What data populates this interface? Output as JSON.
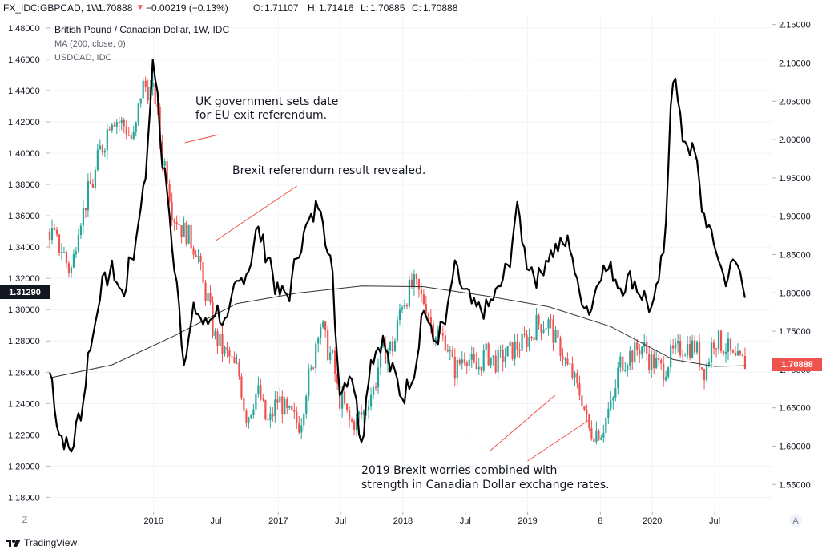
{
  "header": {
    "symbol": "FX_IDC:GBPCAD, 1W",
    "last": "1.70888",
    "change": "−0.00219 (−0.13%)",
    "o_label": "O:",
    "o_value": "1.71107",
    "h_label": "H:",
    "h_value": "1.71416",
    "l_label": "L:",
    "l_value": "1.70885",
    "c_label": "C:",
    "c_value": "1.70888"
  },
  "legend": {
    "line1": "British Pound / Canadian Dollar, 1W, IDC",
    "line2": "MA (200, close, 0)",
    "line3": "USDCAD, IDC"
  },
  "bottom_left_button": "Z",
  "bottom_right_button": "A",
  "brand": "TradingView",
  "colors": {
    "up": "#26a69a",
    "down": "#ef5350",
    "line": "#000000",
    "ma": "#333333",
    "annotation_line": "#ef5350",
    "price_tag": "#ef5350",
    "usdcad_tag": "#131722"
  },
  "chart_data": {
    "type": "line",
    "title": "",
    "x_tick_labels": [
      "2016",
      "Jul",
      "2017",
      "Jul",
      "2018",
      "Jul",
      "2019",
      "8",
      "2020",
      "Jul"
    ],
    "right_axis": {
      "label": "GBPCAD",
      "ticks": [
        "2.15000",
        "2.10000",
        "2.05000",
        "2.00000",
        "1.95000",
        "1.90000",
        "1.85000",
        "1.80000",
        "1.75000",
        "1.70000",
        "1.65000",
        "1.60000",
        "1.55000"
      ],
      "ylim": [
        1.5147,
        2.1612
      ],
      "current_price_label": "1.70888"
    },
    "left_axis": {
      "label": "USDCAD",
      "ticks": [
        "1.48000",
        "1.46000",
        "1.44000",
        "1.42000",
        "1.40000",
        "1.38000",
        "1.36000",
        "1.34000",
        "1.32000",
        "1.30000",
        "1.28000",
        "1.26000",
        "1.24000",
        "1.22000",
        "1.20000",
        "1.18000"
      ],
      "ylim": [
        1.171,
        1.4876
      ],
      "current_price_label": "1.31290"
    },
    "series": [
      {
        "name": "USDCAD, IDC",
        "axis": "left",
        "points": [
          [
            "2015-03",
            1.26
          ],
          [
            "2015-04",
            1.22
          ],
          [
            "2015-05",
            1.21
          ],
          [
            "2015-06",
            1.235
          ],
          [
            "2015-07",
            1.28
          ],
          [
            "2015-08",
            1.315
          ],
          [
            "2015-09",
            1.325
          ],
          [
            "2015-10",
            1.31
          ],
          [
            "2015-11",
            1.335
          ],
          [
            "2015-12",
            1.375
          ],
          [
            "2016-01",
            1.455
          ],
          [
            "2016-02",
            1.39
          ],
          [
            "2016-03",
            1.33
          ],
          [
            "2016-04",
            1.27
          ],
          [
            "2016-05",
            1.3
          ],
          [
            "2016-06",
            1.29
          ],
          [
            "2016-07",
            1.3
          ],
          [
            "2016-08",
            1.29
          ],
          [
            "2016-09",
            1.315
          ],
          [
            "2016-10",
            1.325
          ],
          [
            "2016-11",
            1.35
          ],
          [
            "2016-12",
            1.335
          ],
          [
            "2017-01",
            1.31
          ],
          [
            "2017-02",
            1.31
          ],
          [
            "2017-03",
            1.34
          ],
          [
            "2017-04",
            1.355
          ],
          [
            "2017-05",
            1.37
          ],
          [
            "2017-06",
            1.33
          ],
          [
            "2017-07",
            1.25
          ],
          [
            "2017-08",
            1.26
          ],
          [
            "2017-09",
            1.22
          ],
          [
            "2017-10",
            1.27
          ],
          [
            "2017-11",
            1.28
          ],
          [
            "2017-12",
            1.26
          ],
          [
            "2018-01",
            1.245
          ],
          [
            "2018-02",
            1.26
          ],
          [
            "2018-03",
            1.3
          ],
          [
            "2018-04",
            1.28
          ],
          [
            "2018-05",
            1.29
          ],
          [
            "2018-06",
            1.325
          ],
          [
            "2018-07",
            1.31
          ],
          [
            "2018-08",
            1.3
          ],
          [
            "2018-09",
            1.3
          ],
          [
            "2018-10",
            1.31
          ],
          [
            "2018-11",
            1.325
          ],
          [
            "2018-12",
            1.362
          ],
          [
            "2019-01",
            1.33
          ],
          [
            "2019-02",
            1.32
          ],
          [
            "2019-03",
            1.335
          ],
          [
            "2019-04",
            1.34
          ],
          [
            "2019-05",
            1.343
          ],
          [
            "2019-06",
            1.31
          ],
          [
            "2019-07",
            1.3
          ],
          [
            "2019-08",
            1.325
          ],
          [
            "2019-09",
            1.325
          ],
          [
            "2019-10",
            1.315
          ],
          [
            "2019-11",
            1.32
          ],
          [
            "2019-12",
            1.31
          ],
          [
            "2020-01",
            1.3
          ],
          [
            "2020-02",
            1.33
          ],
          [
            "2020-03",
            1.45
          ],
          [
            "2020-04",
            1.41
          ],
          [
            "2020-05",
            1.4
          ],
          [
            "2020-06",
            1.36
          ],
          [
            "2020-07",
            1.34
          ],
          [
            "2020-08",
            1.32
          ],
          [
            "2020-09",
            1.33
          ],
          [
            "2020-10",
            1.313
          ]
        ]
      },
      {
        "name": "MA (200, close, 0)",
        "axis": "right",
        "points": [
          [
            "2015-03",
            1.689
          ],
          [
            "2015-09",
            1.706
          ],
          [
            "2016-03",
            1.744
          ],
          [
            "2016-09",
            1.786
          ],
          [
            "2017-03",
            1.8
          ],
          [
            "2017-09",
            1.809
          ],
          [
            "2018-03",
            1.808
          ],
          [
            "2018-09",
            1.796
          ],
          [
            "2019-03",
            1.782
          ],
          [
            "2019-09",
            1.756
          ],
          [
            "2020-03",
            1.713
          ],
          [
            "2020-07",
            1.704
          ],
          [
            "2020-10",
            1.705
          ]
        ]
      },
      {
        "name": "British Pound / Canadian Dollar, 1W, IDC",
        "type": "candlestick",
        "axis": "right",
        "points": [
          [
            "2015-03",
            1.88
          ],
          [
            "2015-04",
            1.86
          ],
          [
            "2015-05",
            1.83
          ],
          [
            "2015-06",
            1.9
          ],
          [
            "2015-07",
            1.94
          ],
          [
            "2015-08",
            1.99
          ],
          [
            "2015-09",
            2.03
          ],
          [
            "2015-10",
            2.02
          ],
          [
            "2015-11",
            2.0
          ],
          [
            "2015-12",
            2.07
          ],
          [
            "2016-01",
            2.06
          ],
          [
            "2016-02",
            1.97
          ],
          [
            "2016-03",
            1.9
          ],
          [
            "2016-04",
            1.88
          ],
          [
            "2016-05",
            1.86
          ],
          [
            "2016-06",
            1.8
          ],
          [
            "2016-07",
            1.74
          ],
          [
            "2016-08",
            1.72
          ],
          [
            "2016-09",
            1.7
          ],
          [
            "2016-10",
            1.64
          ],
          [
            "2016-11",
            1.67
          ],
          [
            "2016-12",
            1.63
          ],
          [
            "2017-01",
            1.66
          ],
          [
            "2017-02",
            1.64
          ],
          [
            "2017-03",
            1.63
          ],
          [
            "2017-04",
            1.69
          ],
          [
            "2017-05",
            1.76
          ],
          [
            "2017-06",
            1.72
          ],
          [
            "2017-07",
            1.66
          ],
          [
            "2017-08",
            1.63
          ],
          [
            "2017-09",
            1.64
          ],
          [
            "2017-10",
            1.67
          ],
          [
            "2017-11",
            1.72
          ],
          [
            "2017-12",
            1.73
          ],
          [
            "2018-01",
            1.79
          ],
          [
            "2018-02",
            1.81
          ],
          [
            "2018-03",
            1.79
          ],
          [
            "2018-04",
            1.75
          ],
          [
            "2018-05",
            1.74
          ],
          [
            "2018-06",
            1.7
          ],
          [
            "2018-07",
            1.72
          ],
          [
            "2018-08",
            1.7
          ],
          [
            "2018-09",
            1.72
          ],
          [
            "2018-10",
            1.71
          ],
          [
            "2018-11",
            1.72
          ],
          [
            "2018-12",
            1.73
          ],
          [
            "2019-01",
            1.74
          ],
          [
            "2019-02",
            1.76
          ],
          [
            "2019-03",
            1.76
          ],
          [
            "2019-04",
            1.73
          ],
          [
            "2019-05",
            1.7
          ],
          [
            "2019-06",
            1.67
          ],
          [
            "2019-07",
            1.62
          ],
          [
            "2019-08",
            1.62
          ],
          [
            "2019-09",
            1.65
          ],
          [
            "2019-10",
            1.71
          ],
          [
            "2019-11",
            1.72
          ],
          [
            "2019-12",
            1.73
          ],
          [
            "2020-01",
            1.71
          ],
          [
            "2020-02",
            1.7
          ],
          [
            "2020-03",
            1.72
          ],
          [
            "2020-04",
            1.73
          ],
          [
            "2020-05",
            1.73
          ],
          [
            "2020-06",
            1.7
          ],
          [
            "2020-07",
            1.74
          ],
          [
            "2020-08",
            1.73
          ],
          [
            "2020-09",
            1.71
          ],
          [
            "2020-10",
            1.709
          ]
        ]
      }
    ],
    "annotations": [
      {
        "text_lines": [
          "UK government sets date",
          "for EU exit referendum."
        ]
      },
      {
        "text_lines": [
          "Brexit referendum result revealed."
        ]
      },
      {
        "text_lines": [
          "2019 Brexit worries combined with",
          "strength in Canadian Dollar exchange rates."
        ]
      }
    ]
  }
}
